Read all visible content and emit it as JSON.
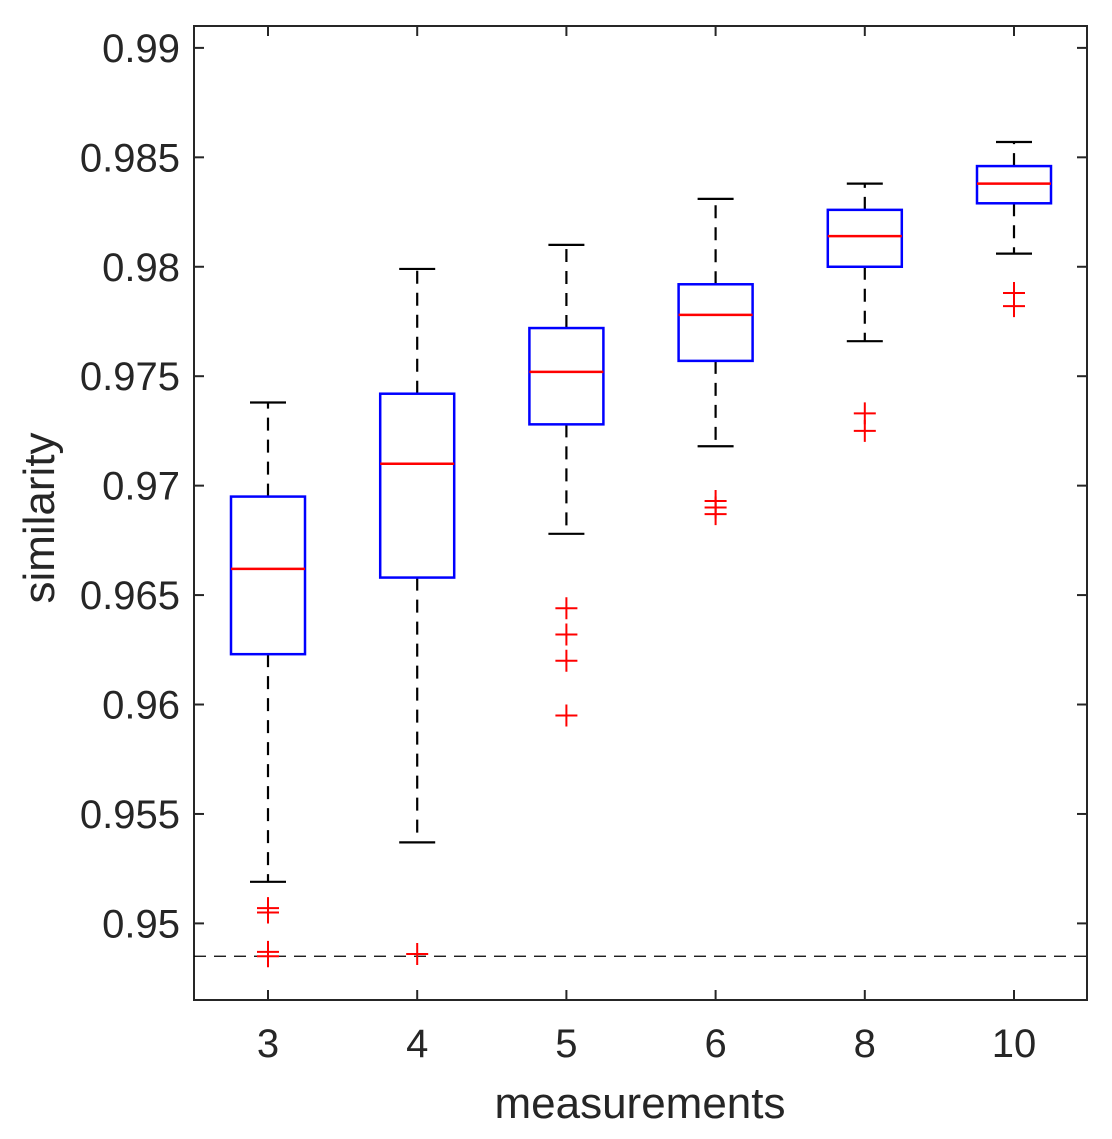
{
  "chart_data": {
    "type": "boxplot",
    "title": "",
    "xlabel": "measurements",
    "ylabel": "similarity",
    "categories": [
      "3",
      "4",
      "5",
      "6",
      "8",
      "10"
    ],
    "ylim": [
      0.9465,
      0.991
    ],
    "yticks": [
      0.95,
      0.955,
      0.96,
      0.965,
      0.97,
      0.975,
      0.98,
      0.985,
      0.99
    ],
    "ytick_labels": [
      "0.95",
      "0.955",
      "0.96",
      "0.965",
      "0.97",
      "0.975",
      "0.98",
      "0.985",
      "0.99"
    ],
    "reference_line": 0.9485,
    "boxes": [
      {
        "label": "3",
        "whisker_low": 0.9519,
        "q1": 0.9623,
        "median": 0.9662,
        "q3": 0.9695,
        "whisker_high": 0.9738,
        "outliers": [
          0.9507,
          0.9505,
          0.9487,
          0.9485
        ]
      },
      {
        "label": "4",
        "whisker_low": 0.9537,
        "q1": 0.9658,
        "median": 0.971,
        "q3": 0.9742,
        "whisker_high": 0.9799,
        "outliers": [
          0.9486
        ]
      },
      {
        "label": "5",
        "whisker_low": 0.9678,
        "q1": 0.9728,
        "median": 0.9752,
        "q3": 0.9772,
        "whisker_high": 0.981,
        "outliers": [
          0.9644,
          0.9632,
          0.962,
          0.9595
        ]
      },
      {
        "label": "6",
        "whisker_low": 0.9718,
        "q1": 0.9757,
        "median": 0.9778,
        "q3": 0.9792,
        "whisker_high": 0.9831,
        "outliers": [
          0.9693,
          0.969,
          0.9687
        ]
      },
      {
        "label": "8",
        "whisker_low": 0.9766,
        "q1": 0.98,
        "median": 0.9814,
        "q3": 0.9826,
        "whisker_high": 0.9838,
        "outliers": [
          0.9733,
          0.9725
        ]
      },
      {
        "label": "10",
        "whisker_low": 0.9806,
        "q1": 0.9829,
        "median": 0.9838,
        "q3": 0.9846,
        "whisker_high": 0.9857,
        "outliers": [
          0.9788,
          0.9782
        ]
      }
    ],
    "colors": {
      "box": "#0000ff",
      "median": "#ff0000",
      "whisker": "#000000",
      "outlier": "#ff0000",
      "axis": "#262626",
      "reference": "#000000"
    }
  }
}
